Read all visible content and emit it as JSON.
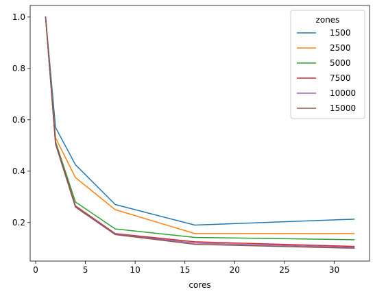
{
  "chart_data": {
    "type": "line",
    "title": "",
    "xlabel": "cores",
    "ylabel": "",
    "xlim": [
      -0.55,
      33.55
    ],
    "ylim": [
      0.05,
      1.045
    ],
    "xticks": [
      0,
      5,
      10,
      15,
      20,
      25,
      30
    ],
    "xtick_labels": [
      "0",
      "5",
      "10",
      "15",
      "20",
      "25",
      "30"
    ],
    "yticks": [
      0.2,
      0.4,
      0.6,
      0.8,
      1.0
    ],
    "ytick_labels": [
      "0.2",
      "0.4",
      "0.6",
      "0.8",
      "1.0"
    ],
    "grid": false,
    "legend": {
      "title": "zones",
      "placement": "top-right"
    },
    "x": [
      1,
      2,
      4,
      8,
      16,
      32
    ],
    "series": [
      {
        "name": "1500",
        "color": "#1f77b4",
        "values": [
          1.0,
          0.57,
          0.425,
          0.27,
          0.19,
          0.213
        ]
      },
      {
        "name": "2500",
        "color": "#ff7f0e",
        "values": [
          1.0,
          0.53,
          0.375,
          0.25,
          0.157,
          0.157
        ]
      },
      {
        "name": "5000",
        "color": "#2ca02c",
        "values": [
          1.0,
          0.515,
          0.28,
          0.175,
          0.142,
          0.133
        ]
      },
      {
        "name": "7500",
        "color": "#d62728",
        "values": [
          1.0,
          0.51,
          0.265,
          0.157,
          0.125,
          0.107
        ]
      },
      {
        "name": "10000",
        "color": "#9467bd",
        "values": [
          1.0,
          0.508,
          0.262,
          0.155,
          0.12,
          0.103
        ]
      },
      {
        "name": "15000",
        "color": "#8c564b",
        "values": [
          1.0,
          0.505,
          0.26,
          0.153,
          0.115,
          0.1
        ]
      }
    ]
  }
}
